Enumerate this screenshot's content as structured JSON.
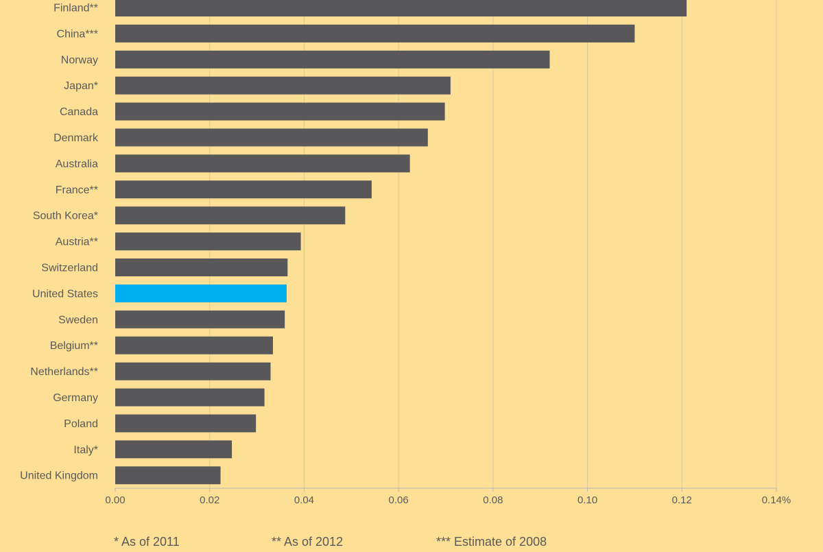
{
  "chart_data": {
    "type": "bar",
    "orientation": "horizontal",
    "categories": [
      "Finland**",
      "China***",
      "Norway",
      "Japan*",
      "Canada",
      "Denmark",
      "Australia",
      "France**",
      "South Korea*",
      "Austria**",
      "Switzerland",
      "United States",
      "Sweden",
      "Belgium**",
      "Netherlands**",
      "Germany",
      "Poland",
      "Italy*",
      "United Kingdom"
    ],
    "series": [
      {
        "values": [
          0.121,
          0.11,
          0.092,
          0.071,
          0.0698,
          0.0662,
          0.0624,
          0.0543,
          0.0487,
          0.0393,
          0.0365,
          0.0363,
          0.0359,
          0.0334,
          0.0329,
          0.0316,
          0.0298,
          0.0247,
          0.0223
        ]
      }
    ],
    "highlight_category": "United States",
    "xlim": [
      0,
      0.14
    ],
    "x_ticks": [
      0.0,
      0.02,
      0.04,
      0.06,
      0.08,
      0.1,
      0.12,
      0.14
    ],
    "x_tick_labels": [
      "0.00",
      "0.02",
      "0.04",
      "0.06",
      "0.08",
      "0.10",
      "0.12",
      "0.14%"
    ],
    "xlabel": "",
    "ylabel": "",
    "grid": "vertical",
    "colors": {
      "background": "#fddf96",
      "bar": "#58585a",
      "highlight": "#00aeef",
      "grid": "#d9c9a0",
      "text": "#5a5a5a"
    }
  },
  "footnotes": [
    "* As of 2011",
    "** As of 2012",
    "*** Estimate of 2008"
  ]
}
